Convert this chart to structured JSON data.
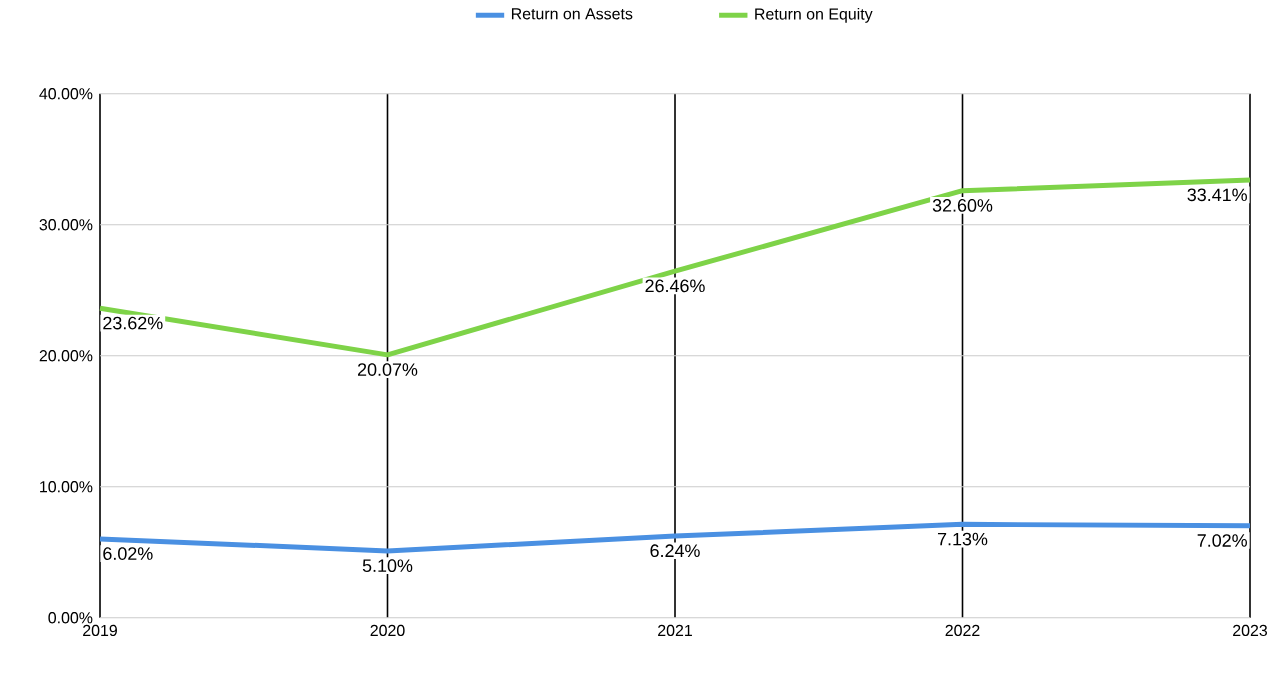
{
  "chart_data": {
    "type": "line",
    "categories": [
      "2019",
      "2020",
      "2021",
      "2022",
      "2023"
    ],
    "series": [
      {
        "name": "Return on Assets",
        "color": "#4a90e2",
        "values": [
          6.02,
          5.1,
          6.24,
          7.13,
          7.02
        ],
        "value_labels": [
          "6.02%",
          "5.10%",
          "6.24%",
          "7.13%",
          "7.02%"
        ]
      },
      {
        "name": "Return on Equity",
        "color": "#7ed348",
        "values": [
          23.62,
          20.07,
          26.46,
          32.6,
          33.41
        ],
        "value_labels": [
          "23.62%",
          "20.07%",
          "26.46%",
          "32.60%",
          "33.41%"
        ]
      }
    ],
    "ylim": [
      0,
      40
    ],
    "yticks": [
      {
        "value": 0,
        "label": "0.00%"
      },
      {
        "value": 10,
        "label": "10.00%"
      },
      {
        "value": 20,
        "label": "20.00%"
      },
      {
        "value": 30,
        "label": "30.00%"
      },
      {
        "value": 40,
        "label": "40.00%"
      }
    ],
    "grid": true,
    "legend": "top",
    "marker": "none",
    "line_style": "solid"
  }
}
